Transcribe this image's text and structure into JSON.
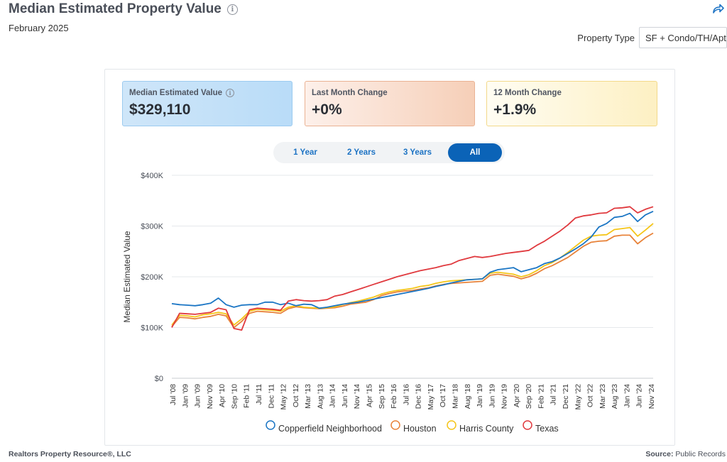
{
  "header": {
    "title": "Median Estimated Property Value",
    "subtitle": "February 2025"
  },
  "property_type": {
    "label": "Property Type",
    "selected": "SF + Condo/TH/Apt"
  },
  "cards": [
    {
      "label": "Median Estimated Value",
      "value": "$329,110"
    },
    {
      "label": "Last Month Change",
      "value": "+0%"
    },
    {
      "label": "12 Month Change",
      "value": "+1.9%"
    }
  ],
  "range_tabs": [
    "1 Year",
    "2 Years",
    "3 Years",
    "All"
  ],
  "active_tab": "All",
  "colors": {
    "copperfield": "#1a75c4",
    "houston": "#e8833a",
    "harris": "#f5c518",
    "texas": "#e0393e"
  },
  "chart_data": {
    "type": "line",
    "ylabel": "Median Estimated Value",
    "ylim": [
      0,
      400000
    ],
    "y_ticks": [
      {
        "value": 0,
        "label": "$0"
      },
      {
        "value": 100000,
        "label": "$100K"
      },
      {
        "value": 200000,
        "label": "$200K"
      },
      {
        "value": 300000,
        "label": "$300K"
      },
      {
        "value": 400000,
        "label": "$400K"
      }
    ],
    "x_tick_labels": [
      "Jul '08",
      "Jan '09",
      "Jun '09",
      "Nov '09",
      "Apr '10",
      "Sep '10",
      "Feb '11",
      "Jul '11",
      "Dec '11",
      "May '12",
      "Oct '12",
      "Mar '13",
      "Aug '13",
      "Jan '14",
      "Jun '14",
      "Nov '14",
      "Apr '15",
      "Sep '15",
      "Feb '16",
      "Jul '16",
      "Dec '16",
      "May '17",
      "Oct '17",
      "Mar '18",
      "Aug '18",
      "Jan '19",
      "Jun '19",
      "Nov '19",
      "Apr '20",
      "Sep '20",
      "Feb '21",
      "Jul '21",
      "Dec '21",
      "May '22",
      "Oct '22",
      "Mar '23",
      "Aug '23",
      "Jan '24",
      "Jun '24",
      "Nov '24"
    ],
    "legend": [
      "Copperfield Neighborhood",
      "Houston",
      "Harris County",
      "Texas"
    ],
    "series": [
      {
        "name": "Copperfield Neighborhood",
        "values": [
          147000,
          145000,
          144000,
          143000,
          145000,
          148000,
          158000,
          145000,
          140000,
          144000,
          145000,
          145000,
          150000,
          150000,
          145000,
          148000,
          143000,
          146000,
          145000,
          138000,
          140000,
          143000,
          146000,
          148000,
          150000,
          153000,
          156000,
          159000,
          162000,
          165000,
          168000,
          171000,
          174000,
          177000,
          181000,
          184000,
          188000,
          191000,
          194000,
          195000,
          196000,
          209000,
          214000,
          216000,
          218000,
          210000,
          214000,
          218000,
          226000,
          230000,
          237000,
          246000,
          255000,
          265000,
          278000,
          298000,
          305000,
          317000,
          319000,
          325000,
          309000,
          322000,
          329000
        ]
      },
      {
        "name": "Houston",
        "values": [
          102000,
          120000,
          119000,
          117000,
          120000,
          122000,
          126000,
          123000,
          100000,
          112000,
          128000,
          132000,
          131000,
          130000,
          128000,
          137000,
          141000,
          139000,
          138000,
          137000,
          138000,
          139000,
          142000,
          146000,
          148000,
          150000,
          155000,
          163000,
          167000,
          170000,
          172000,
          173000,
          176000,
          178000,
          182000,
          185000,
          187000,
          188000,
          189000,
          190000,
          191000,
          203000,
          205000,
          203000,
          201000,
          196000,
          200000,
          207000,
          216000,
          222000,
          230000,
          238000,
          249000,
          260000,
          268000,
          270000,
          271000,
          280000,
          282000,
          282000,
          265000,
          277000,
          286000
        ]
      },
      {
        "name": "Harris County",
        "values": [
          105000,
          124000,
          123000,
          121000,
          125000,
          127000,
          130000,
          127000,
          105000,
          117000,
          132000,
          136000,
          135000,
          134000,
          132000,
          140000,
          143000,
          140000,
          139000,
          138000,
          139000,
          141000,
          145000,
          149000,
          152000,
          156000,
          160000,
          166000,
          170000,
          173000,
          175000,
          177000,
          181000,
          183000,
          187000,
          190000,
          192000,
          193000,
          194000,
          195000,
          196000,
          207000,
          209000,
          207000,
          205000,
          200000,
          204000,
          212000,
          222000,
          228000,
          237000,
          248000,
          260000,
          272000,
          280000,
          282000,
          283000,
          293000,
          295000,
          297000,
          280000,
          292000,
          305000
        ]
      },
      {
        "name": "Texas",
        "values": [
          100000,
          128000,
          127000,
          126000,
          128000,
          130000,
          138000,
          135000,
          98000,
          95000,
          135000,
          138000,
          137000,
          136000,
          134000,
          152000,
          155000,
          153000,
          152000,
          153000,
          155000,
          162000,
          165000,
          170000,
          175000,
          180000,
          185000,
          190000,
          195000,
          200000,
          204000,
          208000,
          212000,
          215000,
          218000,
          222000,
          225000,
          232000,
          236000,
          240000,
          238000,
          240000,
          243000,
          246000,
          248000,
          250000,
          252000,
          262000,
          270000,
          280000,
          290000,
          302000,
          316000,
          320000,
          322000,
          325000,
          326000,
          335000,
          336000,
          338000,
          326000,
          333000,
          338000
        ]
      }
    ]
  },
  "footer": {
    "left": "Realtors Property Resource®, LLC",
    "source_label": "Source:",
    "source_value": "Public Records"
  }
}
